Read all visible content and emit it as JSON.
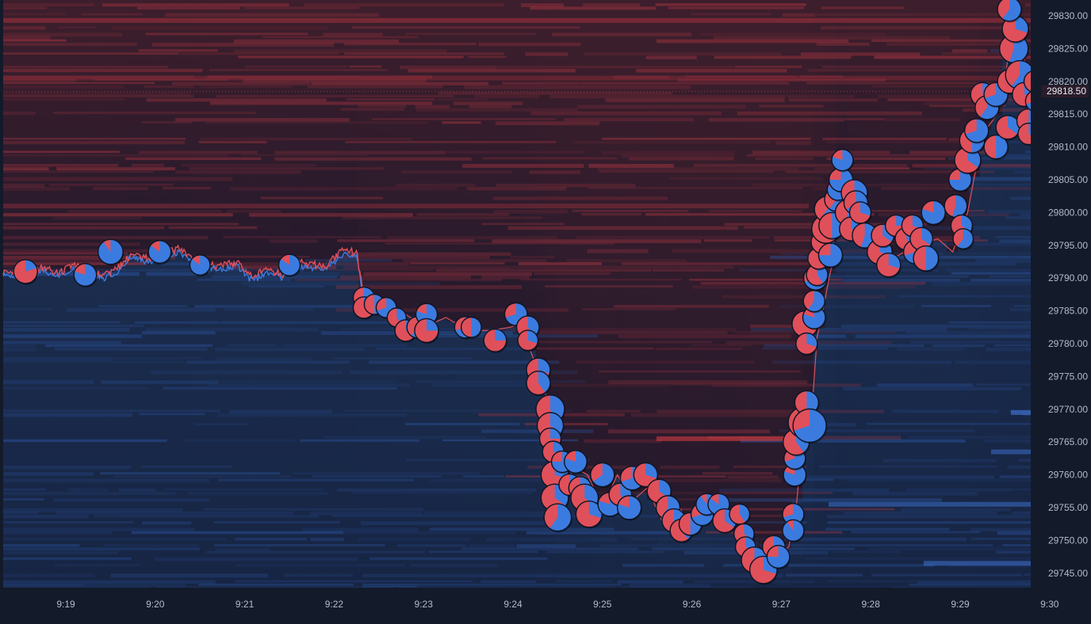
{
  "chart_data": {
    "type": "scatter",
    "subtype": "order-book heatmap with trade bubbles",
    "x_axis": {
      "ticks": [
        "9:19",
        "9:20",
        "9:21",
        "9:22",
        "9:23",
        "9:24",
        "9:25",
        "9:26",
        "9:27",
        "9:28",
        "9:29",
        "9:30"
      ]
    },
    "y_axis": {
      "ticks": [
        "29830.00",
        "29825.00",
        "29820.00",
        "29815.00",
        "29810.00",
        "29805.00",
        "29800.00",
        "29795.00",
        "29790.00",
        "29785.00",
        "29780.00",
        "29775.00",
        "29770.00",
        "29765.00",
        "29760.00",
        "29755.00",
        "29750.00",
        "29745.00"
      ],
      "range": [
        29743,
        29832
      ],
      "side": "right"
    },
    "current_price": {
      "value": 29818.5,
      "label": "29818.50"
    },
    "colors": {
      "background": "#131a2a",
      "ask_heat": "#c0392b",
      "bid_heat": "#2d5fa8",
      "bubble_buy": "#3b7be0",
      "bubble_sell": "#e0505a",
      "price_line": "#e0505a",
      "price_line_alt": "#3b7be0"
    },
    "price_path": [
      [
        "9:18:35",
        29791
      ],
      [
        "9:18:45",
        29791.6
      ],
      [
        "9:18:55",
        29790.5
      ],
      [
        "9:19:05",
        29792
      ],
      [
        "9:19:15",
        29790.8
      ],
      [
        "9:19:25",
        29790.5
      ],
      [
        "9:19:35",
        29791.5
      ],
      [
        "9:19:45",
        29794
      ],
      [
        "9:19:55",
        29793
      ],
      [
        "9:20:05",
        29793.5
      ],
      [
        "9:20:15",
        29794.5
      ],
      [
        "9:20:25",
        29793
      ],
      [
        "9:20:35",
        29792
      ],
      [
        "9:20:45",
        29791.8
      ],
      [
        "9:20:55",
        29792.5
      ],
      [
        "9:21:05",
        29790
      ],
      [
        "9:21:15",
        29791.5
      ],
      [
        "9:21:25",
        29790.5
      ],
      [
        "9:21:35",
        29792.5
      ],
      [
        "9:21:45",
        29792
      ],
      [
        "9:21:55",
        29792
      ],
      [
        "9:22:05",
        29794
      ],
      [
        "9:22:15",
        29794
      ],
      [
        "9:22:20",
        29787
      ],
      [
        "9:22:30",
        29786
      ],
      [
        "9:22:45",
        29785
      ],
      [
        "9:23:00",
        29782.5
      ],
      [
        "9:23:15",
        29784
      ],
      [
        "9:23:30",
        29782
      ],
      [
        "9:23:45",
        29782
      ],
      [
        "9:23:58",
        29782.5
      ],
      [
        "9:24:05",
        29783
      ],
      [
        "9:24:10",
        29780
      ],
      [
        "9:24:18",
        29775
      ],
      [
        "9:24:25",
        29770
      ],
      [
        "9:24:30",
        29764
      ],
      [
        "9:24:35",
        29759
      ],
      [
        "9:24:42",
        29761
      ],
      [
        "9:24:50",
        29760
      ],
      [
        "9:25:00",
        29755
      ],
      [
        "9:25:10",
        29760
      ],
      [
        "9:25:20",
        29756
      ],
      [
        "9:25:30",
        29758
      ],
      [
        "9:25:40",
        29753
      ],
      [
        "9:25:50",
        29756
      ],
      [
        "9:26:00",
        29751
      ],
      [
        "9:26:10",
        29753
      ],
      [
        "9:26:20",
        29755
      ],
      [
        "9:26:30",
        29754
      ],
      [
        "9:26:40",
        29750
      ],
      [
        "9:26:50",
        29747
      ],
      [
        "9:27:05",
        29749
      ],
      [
        "9:27:10",
        29755
      ],
      [
        "9:27:12",
        29760
      ],
      [
        "9:27:16",
        29766
      ],
      [
        "9:27:20",
        29768
      ],
      [
        "9:27:24",
        29781
      ],
      [
        "9:27:28",
        29785
      ],
      [
        "9:27:32",
        29790
      ],
      [
        "9:27:35",
        29793
      ],
      [
        "9:27:38",
        29800
      ],
      [
        "9:27:40",
        29805
      ],
      [
        "9:27:45",
        29800
      ],
      [
        "9:27:52",
        29796
      ],
      [
        "9:28:00",
        29796
      ],
      [
        "9:28:15",
        29793
      ],
      [
        "9:28:30",
        29795
      ],
      [
        "9:28:45",
        29796
      ],
      [
        "9:28:55",
        29794
      ],
      [
        "9:29:05",
        29800
      ],
      [
        "9:29:10",
        29806
      ],
      [
        "9:29:15",
        29812
      ],
      [
        "9:29:25",
        29815
      ],
      [
        "9:29:30",
        29820
      ],
      [
        "9:29:35",
        29829
      ],
      [
        "9:29:42",
        29825
      ],
      [
        "9:29:48",
        29815
      ],
      [
        "9:29:52",
        29818.5
      ]
    ],
    "trades": [
      [
        "9:18:33",
        29791,
        1.0,
        0.2
      ],
      [
        "9:19:13",
        29790.5,
        0.95,
        0.8
      ],
      [
        "9:19:30",
        29794,
        1.05,
        0.9
      ],
      [
        "9:20:03",
        29794,
        0.95,
        0.85
      ],
      [
        "9:20:30",
        29792,
        0.85,
        0.85
      ],
      [
        "9:21:30",
        29792,
        0.9,
        0.85
      ],
      [
        "9:22:20",
        29787,
        0.9,
        0.3
      ],
      [
        "9:22:20",
        29785.5,
        0.9,
        0.2
      ],
      [
        "9:22:27",
        29786,
        0.85,
        0.5
      ],
      [
        "9:22:35",
        29785.5,
        0.85,
        0.7
      ],
      [
        "9:22:42",
        29784,
        0.8,
        0.4
      ],
      [
        "9:22:48",
        29782,
        0.9,
        0.3
      ],
      [
        "9:22:56",
        29782.5,
        0.9,
        0.6
      ],
      [
        "9:23:02",
        29784.5,
        0.9,
        0.8
      ],
      [
        "9:23:02",
        29782,
        1.0,
        0.25
      ],
      [
        "9:23:28",
        29782.5,
        0.9,
        0.7
      ],
      [
        "9:23:32",
        29782.5,
        0.85,
        0.5
      ],
      [
        "9:23:48",
        29780.5,
        0.95,
        0.25
      ],
      [
        "9:24:02",
        29784.5,
        0.95,
        0.7
      ],
      [
        "9:24:10",
        29782.5,
        0.95,
        0.4
      ],
      [
        "9:24:10",
        29780.5,
        0.85,
        0.3
      ],
      [
        "9:24:17",
        29776,
        1.0,
        0.3
      ],
      [
        "9:24:17",
        29774,
        1.0,
        0.4
      ],
      [
        "9:24:25",
        29770,
        1.2,
        0.45
      ],
      [
        "9:24:25",
        29767.5,
        1.1,
        0.35
      ],
      [
        "9:24:25",
        29765.5,
        0.9,
        0.25
      ],
      [
        "9:24:27",
        29763.5,
        0.9,
        0.25
      ],
      [
        "9:24:28",
        29760,
        1.15,
        0.3
      ],
      [
        "9:24:28",
        29756.5,
        1.15,
        0.35
      ],
      [
        "9:24:30",
        29753.5,
        1.15,
        0.6
      ],
      [
        "9:24:33",
        29762,
        0.9,
        0.75
      ],
      [
        "9:24:38",
        29758.5,
        0.9,
        0.3
      ],
      [
        "9:24:42",
        29762,
        0.95,
        0.8
      ],
      [
        "9:24:45",
        29758,
        0.95,
        0.6
      ],
      [
        "9:24:48",
        29756.5,
        1.15,
        0.35
      ],
      [
        "9:24:51",
        29754,
        1.1,
        0.3
      ],
      [
        "9:25:00",
        29760,
        1.0,
        0.65
      ],
      [
        "9:25:05",
        29755.5,
        1.0,
        0.8
      ],
      [
        "9:25:12",
        29757,
        0.95,
        0.4
      ],
      [
        "9:25:18",
        29755,
        1.0,
        0.8
      ],
      [
        "9:25:20",
        29759.5,
        1.0,
        0.7
      ],
      [
        "9:25:29",
        29760,
        1.0,
        0.3
      ],
      [
        "9:25:38",
        29757.5,
        1.0,
        0.35
      ],
      [
        "9:25:44",
        29755,
        1.0,
        0.6
      ],
      [
        "9:25:48",
        29753,
        1.0,
        0.3
      ],
      [
        "9:25:53",
        29751.5,
        0.95,
        0.4
      ],
      [
        "9:25:59",
        29752.5,
        0.95,
        0.5
      ],
      [
        "9:26:07",
        29754,
        0.95,
        0.7
      ],
      [
        "9:26:10",
        29755.5,
        0.9,
        0.9
      ],
      [
        "9:26:18",
        29755.5,
        0.9,
        0.85
      ],
      [
        "9:26:22",
        29753,
        1.0,
        0.35
      ],
      [
        "9:26:32",
        29754,
        0.85,
        0.4
      ],
      [
        "9:26:35",
        29751,
        0.85,
        0.35
      ],
      [
        "9:26:36",
        29749,
        0.85,
        0.3
      ],
      [
        "9:26:42",
        29747,
        1.1,
        0.35
      ],
      [
        "9:26:48",
        29745.5,
        1.15,
        0.3
      ],
      [
        "9:26:55",
        29749,
        0.95,
        0.35
      ],
      [
        "9:26:58",
        29747.5,
        0.95,
        0.75
      ],
      [
        "9:27:08",
        29754,
        0.9,
        0.7
      ],
      [
        "9:27:08",
        29751.5,
        0.9,
        0.9
      ],
      [
        "9:27:09",
        29760,
        0.95,
        0.8
      ],
      [
        "9:27:09",
        29762.5,
        0.9,
        0.7
      ],
      [
        "9:27:10",
        29765,
        1.1,
        0.4
      ],
      [
        "9:27:15",
        29768,
        1.3,
        0.6
      ],
      [
        "9:27:17",
        29771,
        1.0,
        0.5
      ],
      [
        "9:27:19",
        29767.5,
        1.4,
        0.7
      ],
      [
        "9:27:16",
        29783,
        1.1,
        0.3
      ],
      [
        "9:27:17",
        29780,
        0.9,
        0.3
      ],
      [
        "9:27:22",
        29784,
        0.95,
        0.8
      ],
      [
        "9:27:22",
        29786.5,
        0.9,
        0.6
      ],
      [
        "9:27:23",
        29790,
        1.0,
        0.7
      ],
      [
        "9:27:24",
        29790.5,
        0.9,
        0.4
      ],
      [
        "9:27:25",
        29793,
        0.9,
        0.35
      ],
      [
        "9:27:28",
        29795.5,
        1.0,
        0.35
      ],
      [
        "9:27:30",
        29797.5,
        1.2,
        0.4
      ],
      [
        "9:27:31",
        29800.5,
        1.1,
        0.6
      ],
      [
        "9:27:33",
        29793.5,
        1.0,
        0.75
      ],
      [
        "9:27:34",
        29798,
        1.1,
        0.5
      ],
      [
        "9:27:37",
        29802,
        1.0,
        0.6
      ],
      [
        "9:27:38",
        29803.5,
        0.9,
        0.8
      ],
      [
        "9:27:40",
        29805,
        1.0,
        0.75
      ],
      [
        "9:27:41",
        29808,
        0.9,
        0.8
      ],
      [
        "9:27:45",
        29800,
        1.1,
        0.55
      ],
      [
        "9:27:47",
        29797.5,
        1.0,
        0.3
      ],
      [
        "9:27:49",
        29803,
        1.1,
        0.6
      ],
      [
        "9:27:50",
        29801.5,
        1.0,
        0.65
      ],
      [
        "9:27:53",
        29800,
        0.9,
        0.3
      ],
      [
        "9:27:56",
        29796.5,
        1.05,
        0.55
      ],
      [
        "9:28:06",
        29794,
        1.05,
        0.3
      ],
      [
        "9:28:08",
        29796.5,
        0.95,
        0.35
      ],
      [
        "9:28:12",
        29792,
        1.0,
        0.3
      ],
      [
        "9:28:17",
        29798,
        0.9,
        0.25
      ],
      [
        "9:28:24",
        29796,
        0.95,
        0.4
      ],
      [
        "9:28:28",
        29798,
        0.9,
        0.3
      ],
      [
        "9:28:30",
        29794,
        1.0,
        0.7
      ],
      [
        "9:28:34",
        29796,
        0.95,
        0.35
      ],
      [
        "9:28:37",
        29793,
        1.05,
        0.5
      ],
      [
        "9:28:42",
        29800,
        1.0,
        0.8
      ],
      [
        "9:28:57",
        29801,
        0.95,
        0.55
      ],
      [
        "9:29:00",
        29805,
        0.95,
        0.75
      ],
      [
        "9:29:01",
        29798,
        0.9,
        0.35
      ],
      [
        "9:29:02",
        29796,
        0.85,
        0.6
      ],
      [
        "9:29:05",
        29808,
        1.1,
        0.35
      ],
      [
        "9:29:08",
        29811,
        1.05,
        0.5
      ],
      [
        "9:29:11",
        29812.5,
        1.0,
        0.7
      ],
      [
        "9:29:15",
        29818,
        1.0,
        0.4
      ],
      [
        "9:29:18",
        29816,
        1.0,
        0.6
      ],
      [
        "9:29:24",
        29818,
        1.0,
        0.7
      ],
      [
        "9:29:24",
        29810,
        1.0,
        0.5
      ],
      [
        "9:29:32",
        29813,
        1.0,
        0.35
      ],
      [
        "9:29:33",
        29820,
        1.0,
        0.3
      ],
      [
        "9:29:36",
        29825,
        1.2,
        0.55
      ],
      [
        "9:29:37",
        29828,
        1.1,
        0.3
      ],
      [
        "9:29:33",
        29831,
        1.0,
        0.6
      ],
      [
        "9:29:40",
        29821,
        1.2,
        0.6
      ],
      [
        "9:29:43",
        29818,
        1.0,
        0.25
      ],
      [
        "9:29:46",
        29814,
        1.0,
        0.6
      ],
      [
        "9:29:46",
        29812,
        0.9,
        0.35
      ],
      [
        "9:29:50",
        29820,
        0.9,
        0.5
      ],
      [
        "9:29:51",
        29817,
        0.9,
        0.7
      ]
    ]
  }
}
